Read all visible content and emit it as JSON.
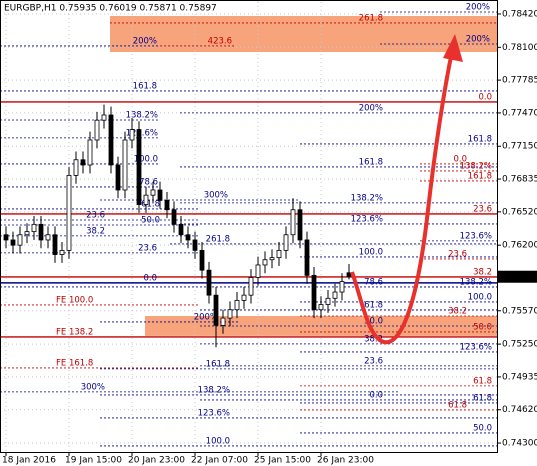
{
  "chart_data": {
    "type": "candlestick",
    "title": "EURGBP,H1  0.75935 0.76019 0.75871 0.75897",
    "categories": [
      "18 Jan 2016",
      null,
      null,
      null,
      null,
      null,
      null,
      null,
      null,
      "19 Jan 15:00",
      null,
      null,
      null,
      null,
      null,
      null,
      null,
      null,
      "20 Jan 23:00",
      null,
      null,
      null,
      null,
      null,
      null,
      null,
      null,
      "22 Jan 07:00",
      null,
      null,
      null,
      null,
      null,
      null,
      null,
      null,
      "25 Jan 15:00",
      null,
      null,
      null,
      null,
      null,
      null,
      null,
      null,
      "26 Jan 23:00",
      null,
      null,
      null,
      null
    ],
    "series": [
      {
        "name": "EURGBP,H1",
        "color": "#000000",
        "open": [
          0.763,
          0.7625,
          0.762,
          0.763,
          0.7633,
          0.764,
          0.7625,
          0.763,
          0.7611,
          0.7615,
          0.7687,
          0.7702,
          0.7697,
          0.7721,
          0.774,
          0.7745,
          0.7697,
          0.7673,
          0.7721,
          0.7731,
          0.7659,
          0.7668,
          0.7673,
          0.7663,
          0.7654,
          0.764,
          0.763,
          0.7625,
          0.7615,
          0.7596,
          0.7572,
          0.7543,
          0.755,
          0.7558,
          0.7567,
          0.7572,
          0.7589,
          0.7601,
          0.7606,
          0.7608,
          0.7615,
          0.763,
          0.7654,
          0.7625,
          0.7591,
          0.7558,
          0.7563,
          0.7569,
          0.7575,
          0.75935
        ],
        "high": [
          0.7638,
          0.7633,
          0.7638,
          0.7641,
          0.7648,
          0.7648,
          0.7638,
          0.7638,
          0.7623,
          0.7695,
          0.771,
          0.771,
          0.7729,
          0.7748,
          0.7755,
          0.7753,
          0.7705,
          0.7729,
          0.7742,
          0.7739,
          0.7676,
          0.7681,
          0.7681,
          0.7671,
          0.7662,
          0.7648,
          0.7638,
          0.7633,
          0.7623,
          0.7604,
          0.758,
          0.7558,
          0.7566,
          0.7575,
          0.758,
          0.7597,
          0.7609,
          0.7614,
          0.7616,
          0.7623,
          0.7638,
          0.7665,
          0.7662,
          0.7633,
          0.7599,
          0.7571,
          0.7577,
          0.7583,
          0.7593,
          0.76019
        ],
        "low": [
          0.7617,
          0.7612,
          0.7612,
          0.7622,
          0.7625,
          0.7617,
          0.7617,
          0.7603,
          0.7603,
          0.7607,
          0.7679,
          0.7689,
          0.7689,
          0.7713,
          0.7732,
          0.7689,
          0.7665,
          0.7665,
          0.7713,
          0.7651,
          0.7651,
          0.766,
          0.7655,
          0.7646,
          0.7632,
          0.7622,
          0.7617,
          0.7607,
          0.7588,
          0.7564,
          0.7522,
          0.7535,
          0.7542,
          0.755,
          0.7559,
          0.7564,
          0.7581,
          0.7593,
          0.7598,
          0.76,
          0.7607,
          0.7622,
          0.7617,
          0.7583,
          0.755,
          0.755,
          0.7555,
          0.7561,
          0.7567,
          0.75871
        ],
        "close": [
          0.7625,
          0.762,
          0.763,
          0.7633,
          0.764,
          0.7625,
          0.763,
          0.7611,
          0.7615,
          0.7687,
          0.7702,
          0.7697,
          0.7721,
          0.774,
          0.7745,
          0.7697,
          0.7673,
          0.7721,
          0.7731,
          0.7659,
          0.7668,
          0.7673,
          0.7663,
          0.7654,
          0.764,
          0.763,
          0.7625,
          0.7615,
          0.7596,
          0.7572,
          0.7543,
          0.755,
          0.7558,
          0.7567,
          0.7572,
          0.7589,
          0.7601,
          0.7606,
          0.7608,
          0.7615,
          0.763,
          0.7654,
          0.7625,
          0.7591,
          0.7558,
          0.7563,
          0.7569,
          0.7575,
          0.7585,
          0.75897
        ]
      }
    ],
    "ylim": [
      0.74214,
      0.78535
    ],
    "yticks": [
      {
        "value": 0.7842,
        "label": "0.78420"
      },
      {
        "value": 0.781,
        "label": "0.78100"
      },
      0.77785,
      {
        "value": 0.7747,
        "label": "0.77470"
      },
      {
        "value": 0.7715,
        "label": "0.77150"
      },
      0.76835,
      {
        "value": 0.7652,
        "label": "0.76520"
      },
      {
        "value": 0.762,
        "label": "0.76200"
      },
      {
        "value": 0.7557,
        "label": "0.75570"
      },
      {
        "value": 0.7525,
        "label": "0.75250"
      },
      0.74935,
      {
        "value": 0.7462,
        "label": "0.74620"
      },
      {
        "value": 0.743,
        "label": "0.74300"
      }
    ],
    "grid": true,
    "zones": [
      {
        "from": 0.78401,
        "to": 0.78055,
        "color": "#f7a47c"
      },
      {
        "from": 0.7552,
        "to": 0.75329,
        "color": "#f7a47c"
      }
    ],
    "levels": [
      {
        "value": 0.78439,
        "label": "200%",
        "color": "#00008b"
      },
      {
        "value": 0.78334,
        "label": "261.8",
        "color": "#c00000"
      },
      {
        "value": 0.78132,
        "label": "200%",
        "color": "#00008b"
      },
      {
        "value": 0.78113,
        "label": "200%",
        "color": "#00008b"
      },
      {
        "value": 0.78113,
        "label": "423.6",
        "color": "#c00000"
      },
      {
        "value": 0.77681,
        "label": "161.8",
        "color": "#00008b"
      },
      {
        "value": 0.77575,
        "label": "0.0",
        "color": "#c00000"
      },
      {
        "value": 0.7747,
        "label": "200%",
        "color": "#00008b"
      },
      {
        "value": 0.77402,
        "label": "138.2%",
        "color": "#00008b"
      },
      {
        "value": 0.7723,
        "label": "123.6%",
        "color": "#00008b"
      },
      {
        "value": 0.77172,
        "label": "161.8",
        "color": "#00008b"
      },
      {
        "value": 0.7698,
        "label": "100.0",
        "color": "#00008b"
      },
      {
        "value": 0.76951,
        "label": "161.8",
        "color": "#00008b"
      },
      {
        "value": 0.7698,
        "label": "0.0",
        "color": "#c00000"
      },
      {
        "value": 0.76913,
        "label": "138.2%",
        "color": "#c00000"
      },
      {
        "value": 0.76817,
        "label": "161.8",
        "color": "#c00000"
      },
      {
        "value": 0.76759,
        "label": "78.6",
        "color": "#00008b"
      },
      {
        "value": 0.76634,
        "label": "300%",
        "color": "#00008b"
      },
      {
        "value": 0.76606,
        "label": "138.2%",
        "color": "#00008b"
      },
      {
        "value": 0.76548,
        "label": "61.8",
        "color": "#00008b"
      },
      {
        "value": 0.765,
        "label": "23.6",
        "color": "#c00000"
      },
      {
        "value": 0.76442,
        "label": "23.6",
        "color": "#00008b"
      },
      {
        "value": 0.76404,
        "label": "123.6%",
        "color": "#00008b"
      },
      {
        "value": 0.76394,
        "label": "50.0",
        "color": "#00008b"
      },
      {
        "value": 0.76289,
        "label": "38.2",
        "color": "#00008b"
      },
      {
        "value": 0.76241,
        "label": "123.6%",
        "color": "#00008b"
      },
      {
        "value": 0.76212,
        "label": "261.8",
        "color": "#00008b"
      },
      {
        "value": 0.76126,
        "label": "23.6",
        "color": "#00008b"
      },
      {
        "value": 0.76087,
        "label": "100.0",
        "color": "#00008b"
      },
      {
        "value": 0.76068,
        "label": "23.6",
        "color": "#c00000"
      },
      {
        "value": 0.75895,
        "label": "38.2",
        "color": "#c00000"
      },
      {
        "value": 0.75838,
        "label": "0.0",
        "color": "#00008b"
      },
      {
        "value": 0.75799,
        "label": "78.6",
        "color": "#00008b"
      },
      {
        "value": 0.75799,
        "label": "138.2%",
        "color": "#00008b"
      },
      {
        "value": 0.75655,
        "label": "100.0",
        "color": "#00008b"
      },
      {
        "value": 0.75626,
        "label": "FE 100.0",
        "color": "#c00000"
      },
      {
        "value": 0.75578,
        "label": "61.8",
        "color": "#00008b"
      },
      {
        "value": 0.7552,
        "label": "38.2",
        "color": "#c00000"
      },
      {
        "value": 0.75463,
        "label": "200%",
        "color": "#00008b"
      },
      {
        "value": 0.75424,
        "label": "50.0",
        "color": "#00008b"
      },
      {
        "value": 0.75367,
        "label": "50.0",
        "color": "#c00000"
      },
      {
        "value": 0.75319,
        "label": "FE 138.2",
        "color": "#c00000"
      },
      {
        "value": 0.75252,
        "label": "38.2",
        "color": "#00008b"
      },
      {
        "value": 0.75175,
        "label": "123.6%",
        "color": "#00008b"
      },
      {
        "value": 0.75041,
        "label": "23.6",
        "color": "#00008b"
      },
      {
        "value": 0.75021,
        "label": "FE 161.8",
        "color": "#c00000"
      },
      {
        "value": 0.75012,
        "label": "161.8",
        "color": "#00008b"
      },
      {
        "value": 0.74849,
        "label": "61.8",
        "color": "#c00000"
      },
      {
        "value": 0.74791,
        "label": "300%",
        "color": "#00008b"
      },
      {
        "value": 0.74762,
        "label": "138.2%",
        "color": "#00008b"
      },
      {
        "value": 0.74714,
        "label": "0.0",
        "color": "#00008b"
      },
      {
        "value": 0.74685,
        "label": "61.8",
        "color": "#00008b"
      },
      {
        "value": 0.74618,
        "label": "61.8",
        "color": "#c00000"
      },
      {
        "value": 0.74541,
        "label": "123.6%",
        "color": "#00008b"
      },
      {
        "value": 0.74397,
        "label": "50.0",
        "color": "#00008b"
      },
      {
        "value": 0.74272,
        "label": "100.0",
        "color": "#00008b"
      }
    ]
  }
}
